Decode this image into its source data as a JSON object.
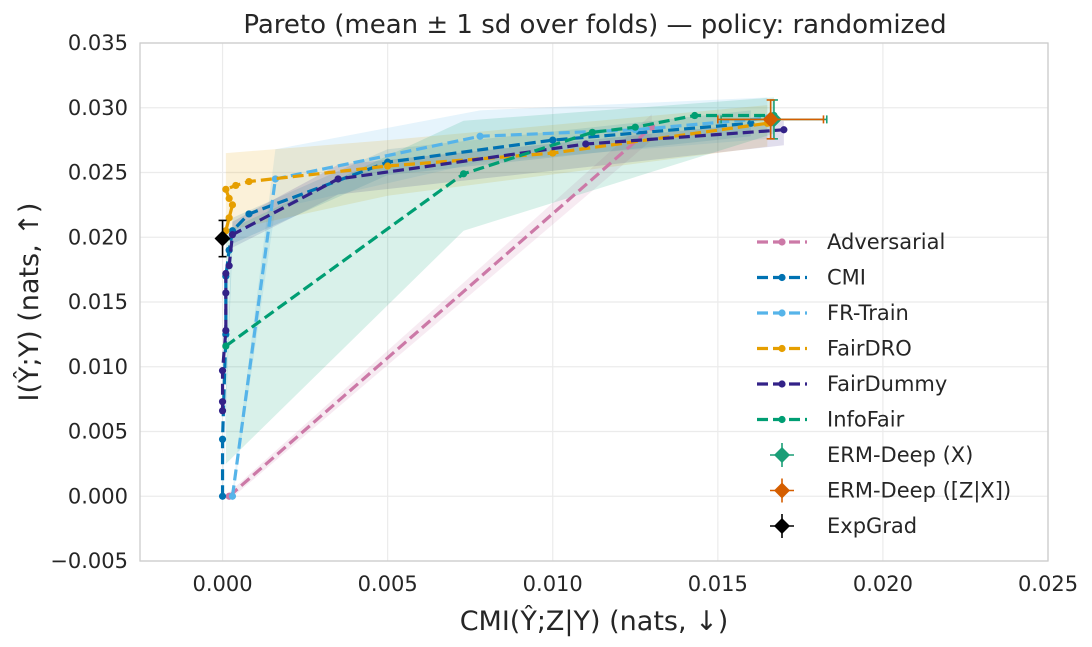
{
  "chart_data": {
    "type": "line",
    "title": "Pareto (mean ± 1 sd over folds) — policy: randomized",
    "xlabel": "CMI(Ŷ;Z|Y) (nats, ↓)",
    "ylabel": "I(Ŷ;Y) (nats, ↑)",
    "xlim": [
      -0.0025,
      0.025
    ],
    "ylim": [
      -0.005,
      0.035
    ],
    "grid": true,
    "legend_position": "center-right",
    "x_ticks": [
      "0.000",
      "0.005",
      "0.010",
      "0.015",
      "0.020",
      "0.025"
    ],
    "x_tick_values": [
      0.0,
      0.005,
      0.01,
      0.015,
      0.02,
      0.025
    ],
    "y_ticks": [
      "−0.005",
      "0.000",
      "0.005",
      "0.010",
      "0.015",
      "0.020",
      "0.025",
      "0.030",
      "0.035"
    ],
    "y_tick_values": [
      -0.005,
      0.0,
      0.005,
      0.01,
      0.015,
      0.02,
      0.025,
      0.03,
      0.035
    ],
    "series": [
      {
        "name": "Adversarial",
        "color": "#cc79a7",
        "style": "dashed",
        "points": [
          [
            0.0002,
            0.0
          ],
          [
            0.013,
            0.0285
          ]
        ],
        "band": {
          "upper": [
            [
              0.0002,
              0.0003
            ],
            [
              0.013,
              0.0295
            ]
          ],
          "lower": [
            [
              0.0002,
              -0.0003
            ],
            [
              0.013,
              0.0275
            ]
          ]
        }
      },
      {
        "name": "CMI",
        "color": "#0072b2",
        "style": "dashed",
        "points": [
          [
            0.0,
            0.0
          ],
          [
            0.0,
            0.0044
          ],
          [
            0.0001,
            0.0125
          ],
          [
            0.0001,
            0.017
          ],
          [
            0.0002,
            0.019
          ],
          [
            0.0003,
            0.0205
          ],
          [
            0.0008,
            0.0218
          ],
          [
            0.005,
            0.0258
          ],
          [
            0.01,
            0.0275
          ],
          [
            0.016,
            0.0288
          ]
        ],
        "band": {
          "upper": [
            [
              0.0,
              0.0004
            ],
            [
              0.0003,
              0.0215
            ],
            [
              0.005,
              0.0268
            ],
            [
              0.016,
              0.0298
            ]
          ],
          "lower": [
            [
              0.0,
              -0.0004
            ],
            [
              0.0003,
              0.0195
            ],
            [
              0.005,
              0.0248
            ],
            [
              0.016,
              0.0278
            ]
          ]
        }
      },
      {
        "name": "FR-Train",
        "color": "#56b4e9",
        "style": "dashed",
        "points": [
          [
            0.0003,
            0.0
          ],
          [
            0.0016,
            0.0245
          ],
          [
            0.0078,
            0.0278
          ],
          [
            0.0125,
            0.0283
          ],
          [
            0.0165,
            0.0292
          ]
        ],
        "band": {
          "upper": [
            [
              0.0003,
              0.0004
            ],
            [
              0.0016,
              0.0268
            ],
            [
              0.0078,
              0.0298
            ],
            [
              0.0165,
              0.0308
            ]
          ],
          "lower": [
            [
              0.0003,
              -0.0004
            ],
            [
              0.0016,
              0.0222
            ],
            [
              0.0078,
              0.0258
            ],
            [
              0.0165,
              0.0276
            ]
          ]
        }
      },
      {
        "name": "FairDRO",
        "color": "#e69f00",
        "style": "dashed",
        "points": [
          [
            0.0001,
            0.0205
          ],
          [
            0.0002,
            0.0215
          ],
          [
            0.0003,
            0.0225
          ],
          [
            0.0002,
            0.023
          ],
          [
            0.0001,
            0.0237
          ],
          [
            0.0004,
            0.024
          ],
          [
            0.0008,
            0.0243
          ],
          [
            0.005,
            0.0255
          ],
          [
            0.01,
            0.0265
          ],
          [
            0.0165,
            0.0288
          ]
        ],
        "band": {
          "upper": [
            [
              0.0001,
              0.0265
            ],
            [
              0.005,
              0.0275
            ],
            [
              0.0165,
              0.0302
            ]
          ],
          "lower": [
            [
              0.0001,
              0.0205
            ],
            [
              0.005,
              0.0232
            ],
            [
              0.0165,
              0.027
            ]
          ]
        }
      },
      {
        "name": "FairDummy",
        "color": "#332288",
        "style": "dashed",
        "points": [
          [
            0.0,
            0.0066
          ],
          [
            0.0,
            0.0073
          ],
          [
            0.0,
            0.0097
          ],
          [
            0.0001,
            0.0128
          ],
          [
            0.0001,
            0.0157
          ],
          [
            0.0001,
            0.0172
          ],
          [
            0.0002,
            0.0178
          ],
          [
            0.0003,
            0.0202
          ],
          [
            0.0035,
            0.0245
          ],
          [
            0.011,
            0.0272
          ],
          [
            0.017,
            0.0283
          ]
        ],
        "band": {
          "upper": [
            [
              0.0003,
              0.0212
            ],
            [
              0.0035,
              0.0256
            ],
            [
              0.017,
              0.029
            ]
          ],
          "lower": [
            [
              0.0003,
              0.0192
            ],
            [
              0.0035,
              0.0233
            ],
            [
              0.017,
              0.0271
            ]
          ]
        }
      },
      {
        "name": "InfoFair",
        "color": "#009e73",
        "style": "dashed",
        "points": [
          [
            0.0001,
            0.0116
          ],
          [
            0.0073,
            0.0249
          ],
          [
            0.0112,
            0.0281
          ],
          [
            0.0125,
            0.0285
          ],
          [
            0.0143,
            0.0294
          ],
          [
            0.0167,
            0.0294
          ]
        ],
        "band": {
          "upper": [
            [
              0.0001,
              0.0205
            ],
            [
              0.0073,
              0.029
            ],
            [
              0.0167,
              0.0308
            ]
          ],
          "lower": [
            [
              0.0001,
              0.0025
            ],
            [
              0.0073,
              0.0205
            ],
            [
              0.0167,
              0.028
            ]
          ]
        }
      }
    ],
    "error_points": [
      {
        "name": "ERM-Deep (X)",
        "color": "#1a9e77",
        "marker": "diamond",
        "x": 0.0167,
        "y": 0.0291,
        "xerr": 0.0016,
        "yerr": 0.0015
      },
      {
        "name": "ERM-Deep ([Z|X])",
        "color": "#d55e00",
        "marker": "diamond",
        "x": 0.0166,
        "y": 0.0291,
        "xerr": 0.0016,
        "yerr": 0.0015
      },
      {
        "name": "ExpGrad",
        "color": "#000000",
        "marker": "diamond",
        "x": 0.0,
        "y": 0.0199,
        "xerr": 0.0001,
        "yerr": 0.0014
      }
    ]
  }
}
